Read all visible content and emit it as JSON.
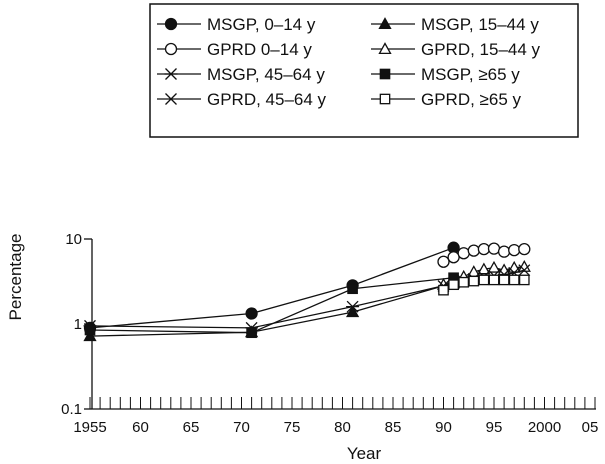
{
  "chart_data": {
    "type": "line",
    "title": "",
    "xlabel": "Year",
    "ylabel": "Percentage",
    "y_scale": "log",
    "xlim": [
      1955,
      2005
    ],
    "ylim": [
      0.1,
      10
    ],
    "grid": false,
    "legend_position": "top",
    "x_ticks": [
      1955,
      1960,
      1965,
      1970,
      1975,
      1980,
      1985,
      1990,
      1995,
      2000,
      2005
    ],
    "x_tick_labels": [
      "1955",
      "60",
      "65",
      "70",
      "75",
      "80",
      "85",
      "90",
      "95",
      "2000",
      "05"
    ],
    "y_ticks": [
      0.1,
      1,
      10
    ],
    "y_tick_labels": [
      "0.1",
      "1",
      "10"
    ],
    "series": [
      {
        "name": "MSGP, 0–14 y",
        "marker": "filled-circle",
        "x": [
          1955,
          1971,
          1981,
          1991
        ],
        "y": [
          0.9,
          1.33,
          2.85,
          7.9
        ]
      },
      {
        "name": "MSGP, 15–44 y",
        "marker": "filled-triangle",
        "x": [
          1955,
          1971,
          1981,
          1991
        ],
        "y": [
          0.72,
          0.8,
          1.38,
          3.05
        ]
      },
      {
        "name": "GPRD 0–14 y",
        "marker": "open-circle",
        "x": [
          1990,
          1991,
          1992,
          1993,
          1994,
          1995,
          1996,
          1997,
          1998
        ],
        "y": [
          5.4,
          6.1,
          6.8,
          7.3,
          7.6,
          7.7,
          7.1,
          7.4,
          7.6
        ]
      },
      {
        "name": "GPRD, 15–44 y",
        "marker": "open-triangle",
        "x": [
          1990,
          1991,
          1992,
          1993,
          1994,
          1995,
          1996,
          1997,
          1998
        ],
        "y": [
          2.9,
          3.1,
          3.6,
          4.1,
          4.4,
          4.6,
          4.3,
          4.6,
          4.7
        ]
      },
      {
        "name": "MSGP, 45–64 y",
        "marker": "asterisk",
        "x": [
          1955,
          1971,
          1981,
          1991
        ],
        "y": [
          0.95,
          0.9,
          1.6,
          3.0
        ]
      },
      {
        "name": "MSGP, ≥65 y",
        "marker": "filled-square",
        "x": [
          1955,
          1971,
          1981,
          1991
        ],
        "y": [
          0.85,
          0.79,
          2.6,
          3.5
        ]
      },
      {
        "name": "GPRD, 45–64 y",
        "marker": "x",
        "x": [
          1990,
          1991,
          1992,
          1993,
          1994,
          1995,
          1996,
          1997,
          1998
        ],
        "y": [
          2.8,
          3.0,
          3.2,
          3.4,
          3.6,
          3.7,
          3.8,
          4.0,
          4.3
        ]
      },
      {
        "name": "GPRD, ≥65 y",
        "marker": "open-square",
        "x": [
          1990,
          1991,
          1992,
          1993,
          1994,
          1995,
          1996,
          1997,
          1998
        ],
        "y": [
          2.5,
          2.9,
          3.1,
          3.2,
          3.3,
          3.3,
          3.3,
          3.3,
          3.3
        ]
      }
    ]
  }
}
